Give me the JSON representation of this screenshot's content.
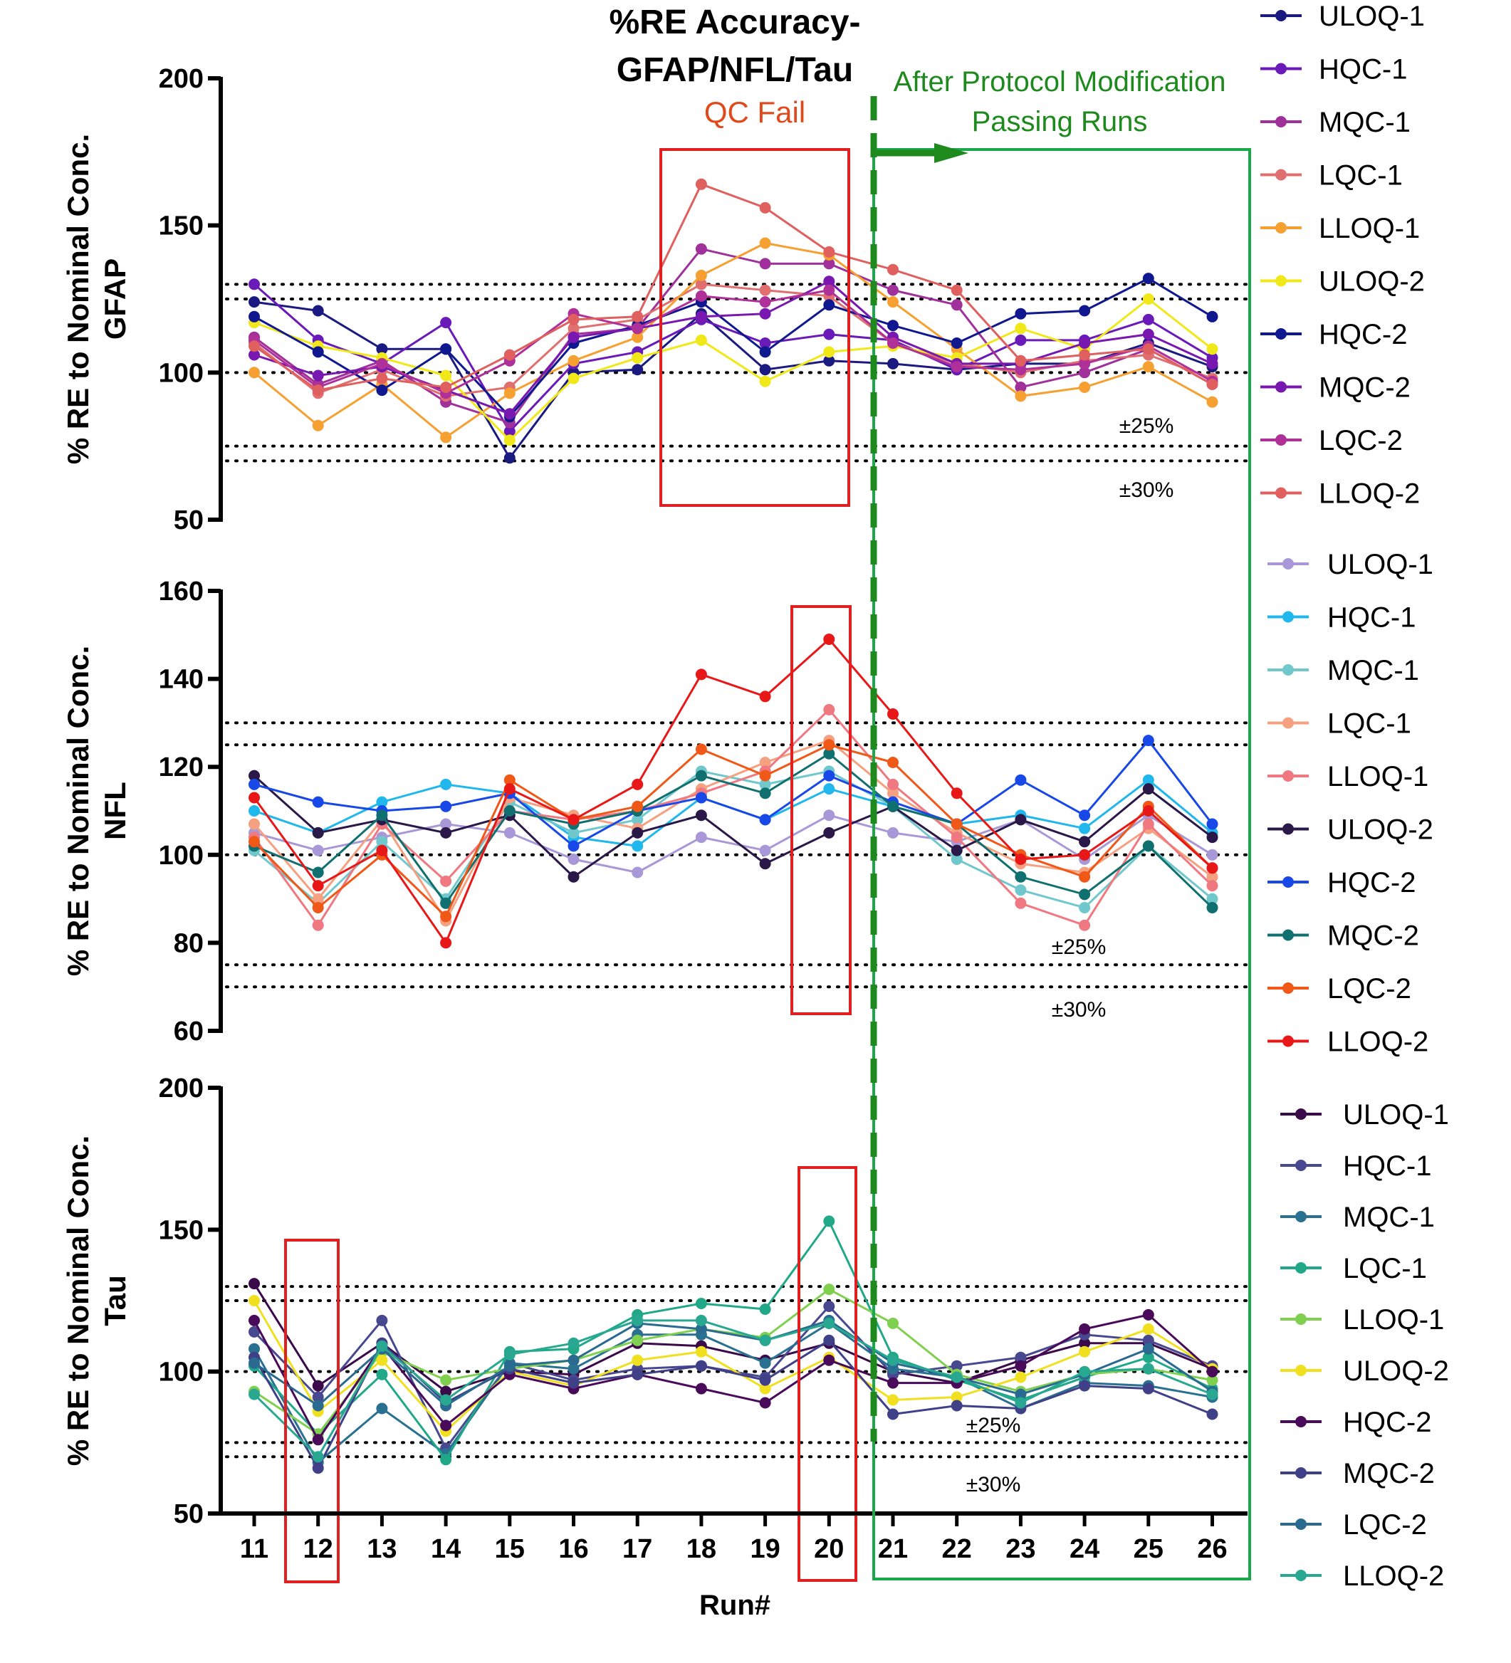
{
  "figure": {
    "title_line1": "%RE Accuracy-",
    "title_line2": "GFAP/NFL/Tau",
    "qc_fail_label": "QC Fail",
    "protocol_label_line1": "After Protocol Modification",
    "protocol_label_line2": "Passing Runs",
    "xlabel": "Run#",
    "colors": {
      "qc_fail_box": "#e02020",
      "passing_box": "#1aa84a",
      "protocol": "#1e8a1e",
      "qc_fail_text": "#e04a1a"
    }
  },
  "chart_data": [
    {
      "type": "line",
      "panel": "GFAP",
      "ylabel_line1": "% RE to Nominal Conc.",
      "ylabel_line2": "GFAP",
      "ylim": [
        50,
        200
      ],
      "yticks": [
        50,
        100,
        150,
        200
      ],
      "x": [
        11,
        12,
        13,
        14,
        15,
        16,
        17,
        18,
        19,
        20,
        21,
        22,
        23,
        24,
        25,
        26
      ],
      "reference_lines": [
        70,
        75,
        100,
        125,
        130
      ],
      "band_labels": [
        "±25%",
        "±30%"
      ],
      "qc_fail_runs": [
        18,
        20
      ],
      "series": [
        {
          "name": "ULOQ-1",
          "color": "#1a1a80",
          "values": [
            124,
            121,
            108,
            108,
            71,
            100,
            101,
            120,
            101,
            104,
            103,
            101,
            103,
            103,
            110,
            102
          ]
        },
        {
          "name": "HQC-1",
          "color": "#6a1ab8",
          "values": [
            130,
            111,
            103,
            117,
            80,
            103,
            107,
            118,
            110,
            113,
            111,
            101,
            111,
            111,
            118,
            105
          ]
        },
        {
          "name": "MQC-1",
          "color": "#a0309a",
          "values": [
            112,
            96,
            104,
            90,
            83,
            113,
            115,
            142,
            137,
            137,
            128,
            123,
            95,
            100,
            108,
            96
          ]
        },
        {
          "name": "LQC-1",
          "color": "#e07070",
          "values": [
            110,
            93,
            101,
            92,
            95,
            115,
            118,
            130,
            128,
            126,
            110,
            103,
            100,
            104,
            106,
            98
          ]
        },
        {
          "name": "LLOQ-1",
          "color": "#f5a030",
          "values": [
            100,
            82,
            96,
            78,
            93,
            104,
            112,
            133,
            144,
            140,
            124,
            108,
            92,
            95,
            102,
            90
          ]
        },
        {
          "name": "ULOQ-2",
          "color": "#f0e818",
          "values": [
            117,
            109,
            105,
            99,
            77,
            98,
            105,
            111,
            97,
            107,
            109,
            105,
            115,
            108,
            125,
            108
          ]
        },
        {
          "name": "HQC-2",
          "color": "#101890",
          "values": [
            119,
            107,
            94,
            108,
            85,
            110,
            116,
            124,
            107,
            123,
            116,
            110,
            120,
            121,
            132,
            119
          ]
        },
        {
          "name": "MQC-2",
          "color": "#7818b0",
          "values": [
            106,
            99,
            102,
            94,
            86,
            112,
            115,
            119,
            120,
            131,
            112,
            103,
            103,
            110,
            113,
            103
          ]
        },
        {
          "name": "LQC-2",
          "color": "#b0309a",
          "values": [
            111,
            95,
            103,
            93,
            104,
            120,
            115,
            126,
            124,
            128,
            110,
            102,
            101,
            103,
            109,
            97
          ]
        },
        {
          "name": "LLOQ-2",
          "color": "#e06060",
          "values": [
            109,
            94,
            98,
            95,
            106,
            118,
            119,
            164,
            156,
            141,
            135,
            128,
            104,
            106,
            108,
            96
          ]
        }
      ]
    },
    {
      "type": "line",
      "panel": "NFL",
      "ylabel_line1": "% RE to Nominal Conc.",
      "ylabel_line2": "NFL",
      "ylim": [
        60,
        160
      ],
      "yticks": [
        60,
        80,
        100,
        120,
        140,
        160
      ],
      "x": [
        11,
        12,
        13,
        14,
        15,
        16,
        17,
        18,
        19,
        20,
        21,
        22,
        23,
        24,
        25,
        26
      ],
      "reference_lines": [
        70,
        75,
        100,
        125,
        130
      ],
      "band_labels": [
        "±25%",
        "±30%"
      ],
      "qc_fail_runs": [
        20
      ],
      "series": [
        {
          "name": "ULOQ-1",
          "color": "#a898d8",
          "values": [
            105,
            101,
            104,
            107,
            105,
            99,
            96,
            104,
            101,
            109,
            105,
            103,
            108,
            99,
            109,
            100
          ]
        },
        {
          "name": "HQC-1",
          "color": "#20b8ec",
          "values": [
            110,
            105,
            112,
            116,
            114,
            104,
            102,
            113,
            108,
            115,
            111,
            107,
            109,
            106,
            117,
            105
          ]
        },
        {
          "name": "MQC-1",
          "color": "#70c8cc",
          "values": [
            101,
            89,
            103,
            90,
            112,
            105,
            108,
            119,
            116,
            119,
            111,
            99,
            92,
            88,
            102,
            90
          ]
        },
        {
          "name": "LQC-1",
          "color": "#f5a080",
          "values": [
            107,
            90,
            108,
            85,
            113,
            109,
            106,
            115,
            121,
            126,
            114,
            105,
            98,
            96,
            106,
            95
          ]
        },
        {
          "name": "LLOQ-1",
          "color": "#f07880",
          "values": [
            104,
            84,
            107,
            94,
            110,
            108,
            110,
            114,
            119,
            133,
            116,
            104,
            89,
            84,
            107,
            93
          ]
        },
        {
          "name": "ULOQ-2",
          "color": "#2a1848",
          "values": [
            118,
            105,
            108,
            105,
            109,
            95,
            105,
            109,
            98,
            105,
            111,
            101,
            108,
            103,
            115,
            104
          ]
        },
        {
          "name": "HQC-2",
          "color": "#1848e8",
          "values": [
            116,
            112,
            110,
            111,
            114,
            102,
            110,
            113,
            108,
            118,
            112,
            107,
            117,
            109,
            126,
            107
          ]
        },
        {
          "name": "MQC-2",
          "color": "#107070",
          "values": [
            102,
            96,
            109,
            89,
            110,
            107,
            110,
            118,
            114,
            123,
            111,
            107,
            95,
            91,
            102,
            88
          ]
        },
        {
          "name": "LQC-2",
          "color": "#f05818",
          "values": [
            103,
            88,
            100,
            86,
            117,
            108,
            111,
            124,
            118,
            125,
            121,
            107,
            100,
            95,
            111,
            97
          ]
        },
        {
          "name": "LLOQ-2",
          "color": "#e81818",
          "values": [
            113,
            93,
            101,
            80,
            115,
            108,
            116,
            141,
            136,
            149,
            132,
            114,
            99,
            100,
            110,
            97
          ]
        }
      ]
    },
    {
      "type": "line",
      "panel": "Tau",
      "ylabel_line1": "% RE to Nominal Conc.",
      "ylabel_line2": "Tau",
      "ylim": [
        50,
        200
      ],
      "yticks": [
        50,
        100,
        150,
        200
      ],
      "x": [
        11,
        12,
        13,
        14,
        15,
        16,
        17,
        18,
        19,
        20,
        21,
        22,
        23,
        24,
        25,
        26
      ],
      "xticks": [
        "11",
        "12",
        "13",
        "14",
        "15",
        "16",
        "17",
        "18",
        "19",
        "20",
        "21",
        "22",
        "23",
        "24",
        "25",
        "26"
      ],
      "reference_lines": [
        70,
        75,
        100,
        125,
        130
      ],
      "band_labels": [
        "±25%",
        "±30%"
      ],
      "qc_fail_runs": [
        12,
        20
      ],
      "series": [
        {
          "name": "ULOQ-1",
          "color": "#3a0a4a",
          "values": [
            131,
            95,
            110,
            93,
            100,
            99,
            110,
            109,
            104,
            110,
            100,
            96,
            104,
            110,
            110,
            101
          ]
        },
        {
          "name": "HQC-1",
          "color": "#484890",
          "values": [
            114,
            91,
            118,
            73,
            103,
            97,
            101,
            102,
            98,
            123,
            99,
            102,
            105,
            113,
            111,
            102
          ]
        },
        {
          "name": "MQC-1",
          "color": "#2a7090",
          "values": [
            108,
            68,
            87,
            71,
            103,
            101,
            113,
            113,
            103,
            117,
            101,
            98,
            87,
            96,
            95,
            91
          ]
        },
        {
          "name": "LQC-1",
          "color": "#20a888",
          "values": [
            102,
            78,
            99,
            69,
            107,
            108,
            120,
            124,
            122,
            153,
            105,
            97,
            90,
            98,
            105,
            94
          ]
        },
        {
          "name": "LLOQ-1",
          "color": "#80d050",
          "values": [
            93,
            78,
            107,
            97,
            101,
            104,
            111,
            115,
            112,
            129,
            117,
            99,
            93,
            99,
            101,
            97
          ]
        },
        {
          "name": "ULOQ-2",
          "color": "#f0e020",
          "values": [
            125,
            86,
            104,
            79,
            100,
            95,
            104,
            107,
            94,
            105,
            90,
            91,
            98,
            107,
            115,
            101
          ]
        },
        {
          "name": "HQC-2",
          "color": "#4a0a5a",
          "values": [
            118,
            76,
            109,
            81,
            99,
            94,
            99,
            94,
            89,
            104,
            96,
            96,
            102,
            115,
            120,
            100
          ]
        },
        {
          "name": "MQC-2",
          "color": "#404088",
          "values": [
            105,
            66,
            110,
            89,
            101,
            96,
            99,
            102,
            97,
            111,
            85,
            88,
            87,
            95,
            94,
            85
          ]
        },
        {
          "name": "LQC-2",
          "color": "#2a6a90",
          "values": [
            103,
            88,
            108,
            88,
            102,
            104,
            117,
            115,
            111,
            118,
            103,
            98,
            92,
            99,
            108,
            93
          ]
        },
        {
          "name": "LLOQ-2",
          "color": "#28a890",
          "values": [
            92,
            70,
            109,
            90,
            106,
            110,
            118,
            118,
            111,
            117,
            104,
            98,
            89,
            100,
            101,
            92
          ]
        }
      ]
    }
  ]
}
